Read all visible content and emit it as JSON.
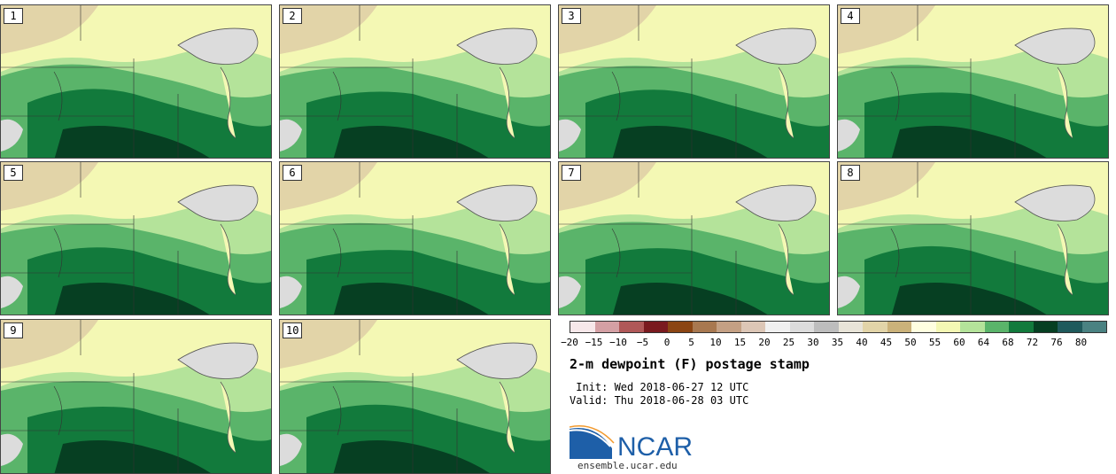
{
  "panels": [
    {
      "label": "1"
    },
    {
      "label": "2"
    },
    {
      "label": "3"
    },
    {
      "label": "4"
    },
    {
      "label": "5"
    },
    {
      "label": "6"
    },
    {
      "label": "7"
    },
    {
      "label": "8"
    },
    {
      "label": "9"
    },
    {
      "label": "10"
    }
  ],
  "colorbar": {
    "colors": [
      "#f7e8ea",
      "#d4a0a4",
      "#b05858",
      "#7a1a1f",
      "#8b4513",
      "#a87850",
      "#c4a084",
      "#dcc6b6",
      "#f0f0f0",
      "#dcdcdc",
      "#bdbdbd",
      "#e8e4d8",
      "#e2d4a8",
      "#cbb27a",
      "#ffffe0",
      "#f4f8b4",
      "#b4e39a",
      "#5ab46a",
      "#127a3c",
      "#063f22",
      "#1f5a5c",
      "#4a8282"
    ],
    "ticks": [
      "−20",
      "−15",
      "−10",
      "−5",
      "0",
      "5",
      "10",
      "15",
      "20",
      "25",
      "30",
      "35",
      "40",
      "45",
      "50",
      "55",
      "60",
      "64",
      "68",
      "72",
      "76",
      "80"
    ]
  },
  "title": "2-m dewpoint (F) postage stamp",
  "init": " Init: Wed 2018-06-27 12 UTC",
  "valid": "Valid: Thu 2018-06-28 03 UTC",
  "logo": {
    "text": "NCAR",
    "url": "ensemble.ucar.edu",
    "swoosh_color": "#1e5fa8",
    "text_color": "#1e5fa8"
  }
}
